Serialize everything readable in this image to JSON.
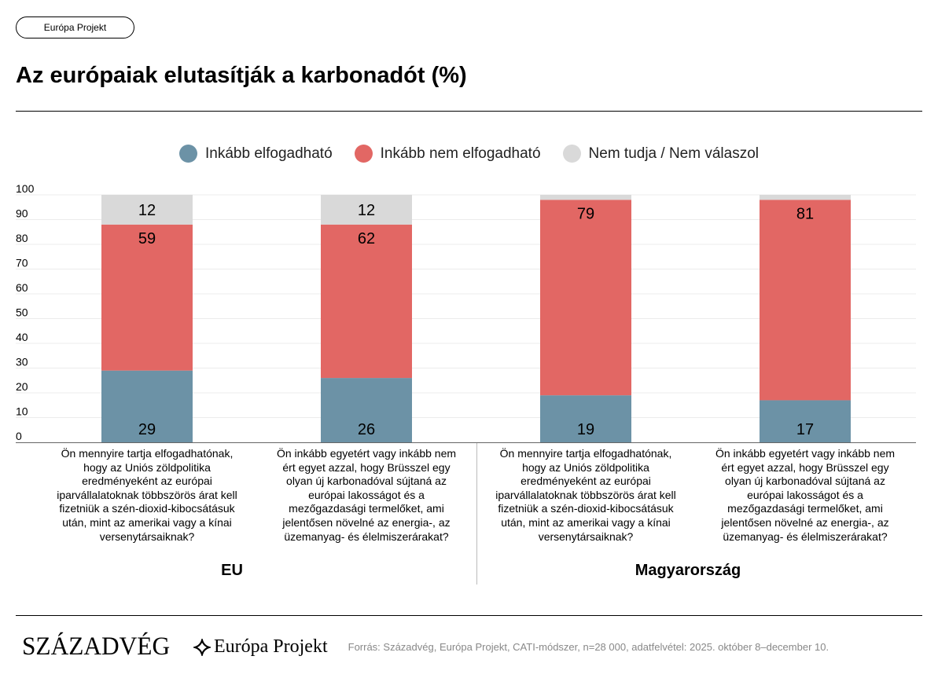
{
  "header": {
    "pill_label": "Európa Projekt",
    "title": "Az európaiak elutasítják a karbonadót (%)"
  },
  "legend": [
    {
      "label": "Inkább elfogadható",
      "color": "#6c92a6"
    },
    {
      "label": "Inkább nem elfogadható",
      "color": "#e26764"
    },
    {
      "label": "Nem tudja / Nem válaszol",
      "color": "#d9d9d9"
    }
  ],
  "chart_data": {
    "type": "bar",
    "stacked": true,
    "ylim": [
      0,
      100
    ],
    "yticks": [
      0,
      10,
      20,
      30,
      40,
      50,
      60,
      70,
      80,
      90,
      100
    ],
    "grid": true,
    "legend_position": "top",
    "groups": [
      "EU",
      "Magyarország"
    ],
    "categories": [
      {
        "group": "EU",
        "lines": [
          "Ön mennyire tartja elfogadhatónak,",
          "hogy az Uniós zöldpolitika",
          "eredményeként az európai",
          "iparvállalatoknak többszörös árat kell",
          "fizetniük a szén-dioxid-kibocsátásuk",
          "után, mint az amerikai vagy a kínai",
          "versenytársaiknak?"
        ]
      },
      {
        "group": "EU",
        "lines": [
          "Ön inkább egyetért vagy inkább nem",
          "ért egyet azzal, hogy Brüsszel egy",
          "olyan új karbonadóval sújtaná az",
          "európai lakosságot és a",
          "mezőgazdasági termelőket, ami",
          "jelentősen növelné az energia-, az",
          "üzemanyag- és élelmiszerárakat?"
        ]
      },
      {
        "group": "Magyarország",
        "lines": [
          "Ön mennyire tartja elfogadhatónak,",
          "hogy az Uniós zöldpolitika",
          "eredményeként az európai",
          "iparvállalatoknak többszörös árat kell",
          "fizetniük a szén-dioxid-kibocsátásuk",
          "után, mint az amerikai vagy a kínai",
          "versenytársaiknak?"
        ]
      },
      {
        "group": "Magyarország",
        "lines": [
          "Ön inkább egyetért vagy inkább nem",
          "ért egyet azzal, hogy Brüsszel egy",
          "olyan új karbonadóval sújtaná az",
          "európai lakosságot és a",
          "mezőgazdasági termelőket, ami",
          "jelentősen növelné az energia-, az",
          "üzemanyag- és élelmiszerárakat?"
        ]
      }
    ],
    "series": [
      {
        "name": "Inkább elfogadható",
        "values": [
          29,
          26,
          19,
          17
        ],
        "labels": [
          "29",
          "26",
          "19",
          "17"
        ]
      },
      {
        "name": "Inkább nem elfogadható",
        "values": [
          59,
          62,
          79,
          81
        ],
        "labels": [
          "59",
          "62",
          "79",
          "81"
        ]
      },
      {
        "name": "Nem tudja / Nem válaszol",
        "values": [
          12,
          12,
          2,
          2
        ],
        "labels": [
          "12",
          "12",
          "",
          ""
        ]
      }
    ]
  },
  "footer": {
    "logo_primary": "Századvég",
    "logo_secondary": "Európa Projekt",
    "source": "Forrás: Századvég, Európa Projekt, CATI-módszer, n=28 000, adatfelvétel: 2025. október 8–december 10."
  }
}
